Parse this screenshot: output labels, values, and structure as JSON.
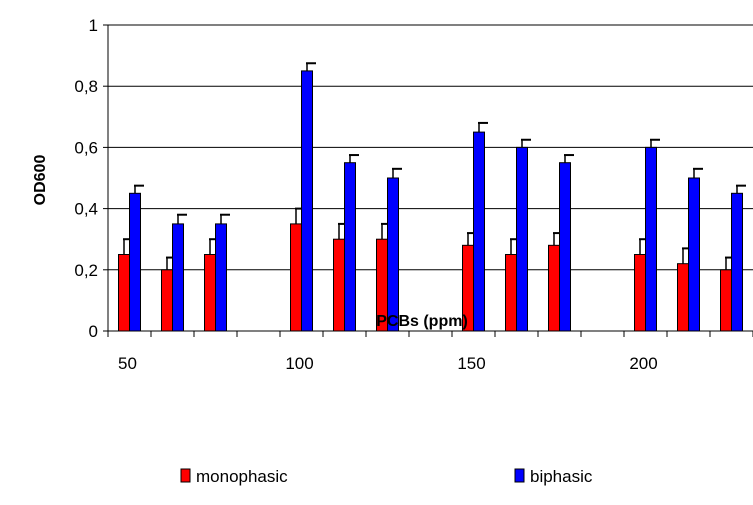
{
  "chart_data": {
    "type": "bar",
    "xlabel": "PCBs (ppm)",
    "ylabel": "OD600",
    "ylim": [
      0,
      1
    ],
    "y_ticks": [
      "0",
      "0,2",
      "0,4",
      "0,6",
      "0,8",
      "1"
    ],
    "x_tick_labels": [
      "50",
      "100",
      "150",
      "200"
    ],
    "grid": "horizontal",
    "legend_position": "bottom",
    "groups": [
      {
        "label": "50",
        "slots": [
          0,
          1,
          2
        ]
      },
      {
        "label": "100",
        "slots": [
          4,
          5,
          6
        ]
      },
      {
        "label": "150",
        "slots": [
          8,
          9,
          10
        ]
      },
      {
        "label": "200",
        "slots": [
          12,
          13,
          14
        ]
      }
    ],
    "slot_count": 15,
    "series": [
      {
        "name": "monophasic",
        "color": "#ff0000",
        "values": [
          0.25,
          0.2,
          0.25,
          0.35,
          0.3,
          0.3,
          0.28,
          0.25,
          0.28,
          0.25,
          0.22,
          0.2
        ],
        "errors": [
          0.05,
          0.04,
          0.05,
          0.05,
          0.05,
          0.05,
          0.04,
          0.05,
          0.04,
          0.05,
          0.05,
          0.04
        ]
      },
      {
        "name": "biphasic",
        "color": "#0000ff",
        "values": [
          0.45,
          0.35,
          0.35,
          0.85,
          0.55,
          0.5,
          0.65,
          0.6,
          0.55,
          0.6,
          0.5,
          0.45
        ],
        "errors": [
          0.025,
          0.03,
          0.03,
          0.025,
          0.025,
          0.03,
          0.03,
          0.025,
          0.025,
          0.025,
          0.03,
          0.025
        ]
      }
    ]
  }
}
